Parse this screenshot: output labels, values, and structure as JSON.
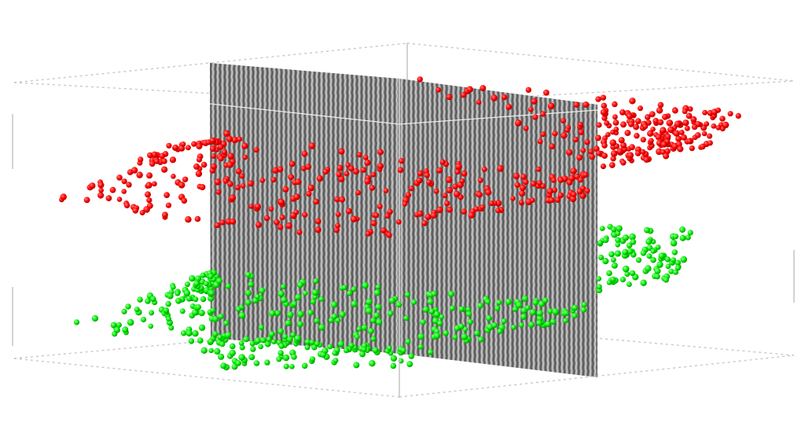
{
  "scene": {
    "type": "3d-point-cloud-with-seismic-panel",
    "background_color": "#ffffff",
    "bounding_box": {
      "style": "dotted",
      "color": "#c8c8c8"
    },
    "seismic_panel": {
      "texture": "wiggle-trace",
      "base_color": "#8a8a8a",
      "line_color": "#f2f2f2"
    },
    "point_sets": [
      {
        "id": "upper-horizon",
        "color": "#ff0000",
        "approx_count": 520
      },
      {
        "id": "lower-horizon",
        "color": "#00ee00",
        "approx_count": 480
      }
    ]
  }
}
